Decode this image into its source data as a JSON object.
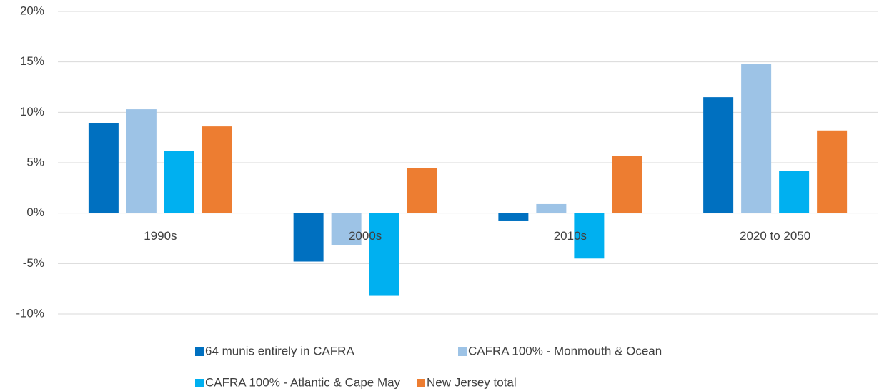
{
  "chart_data": {
    "type": "bar",
    "categories": [
      "1990s",
      "2000s",
      "2010s",
      "2020 to 2050"
    ],
    "series": [
      {
        "name": "64 munis entirely in CAFRA",
        "color": "#0070c0",
        "values": [
          8.9,
          -4.8,
          -0.8,
          11.5
        ]
      },
      {
        "name": "CAFRA 100% - Monmouth & Ocean",
        "color": "#9dc3e6",
        "values": [
          10.3,
          -3.2,
          0.9,
          14.8
        ]
      },
      {
        "name": "CAFRA 100% - Atlantic & Cape May",
        "color": "#00b0f0",
        "values": [
          6.2,
          -8.2,
          -4.5,
          4.2
        ]
      },
      {
        "name": "New Jersey total",
        "color": "#ed7d31",
        "values": [
          8.6,
          4.5,
          5.7,
          8.2
        ]
      }
    ],
    "ylim": [
      -10,
      20
    ],
    "yticks": [
      {
        "value": -10,
        "label": "-10%"
      },
      {
        "value": -5,
        "label": "-5%"
      },
      {
        "value": 0,
        "label": "0%"
      },
      {
        "value": 5,
        "label": "5%"
      },
      {
        "value": 10,
        "label": "10%"
      },
      {
        "value": 15,
        "label": "15%"
      },
      {
        "value": 20,
        "label": "20%"
      }
    ],
    "grid": true,
    "legend": "bottom"
  }
}
